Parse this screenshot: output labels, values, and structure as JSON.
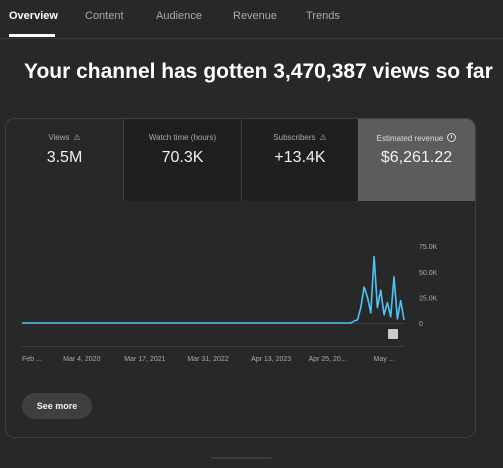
{
  "tabs": [
    {
      "label": "Overview",
      "active": true
    },
    {
      "label": "Content"
    },
    {
      "label": "Audience"
    },
    {
      "label": "Revenue"
    },
    {
      "label": "Trends"
    }
  ],
  "headline": "Your channel has gotten 3,470,387 views so far",
  "metrics": [
    {
      "label": "Views",
      "value": "3.5M",
      "icon": "warning-icon"
    },
    {
      "label": "Watch time (hours)",
      "value": "70.3K"
    },
    {
      "label": "Subscribers",
      "value": "+13.4K",
      "icon": "warning-icon"
    },
    {
      "label": "Estimated revenue",
      "value": "$6,261.22",
      "icon": "clock-icon",
      "selected": true
    }
  ],
  "chart_data": {
    "type": "line",
    "y_tick_labels": [
      "75.0K",
      "50.0K",
      "25.0K",
      "0"
    ],
    "y_ticks": [
      75000,
      50000,
      25000,
      0
    ],
    "ylim": [
      0,
      80000
    ],
    "x_tick_labels": [
      "Feb ...",
      "Mar 4, 2020",
      "Mar 17, 2021",
      "Mar 31, 2022",
      "Apr 13, 2023",
      "Apr 25, 20...",
      "May ..."
    ],
    "x_ticks": [
      0,
      0.18,
      0.37,
      0.56,
      0.75,
      0.92,
      1.09
    ],
    "xlim": [
      0,
      1.15
    ],
    "x": [
      0,
      0.2,
      0.5,
      0.8,
      0.95,
      0.99,
      1.0,
      1.01,
      1.02,
      1.03,
      1.04,
      1.05,
      1.06,
      1.07,
      1.08,
      1.09,
      1.1,
      1.11,
      1.12,
      1.13,
      1.14,
      1.15
    ],
    "values": [
      0,
      0,
      0,
      0,
      0,
      0,
      2000,
      3000,
      15000,
      35000,
      25000,
      10000,
      65000,
      15000,
      32000,
      8000,
      20000,
      6000,
      45000,
      4000,
      22000,
      3000
    ],
    "series_color": "#4fc3f7",
    "grid": false
  },
  "see_more_label": "See more"
}
